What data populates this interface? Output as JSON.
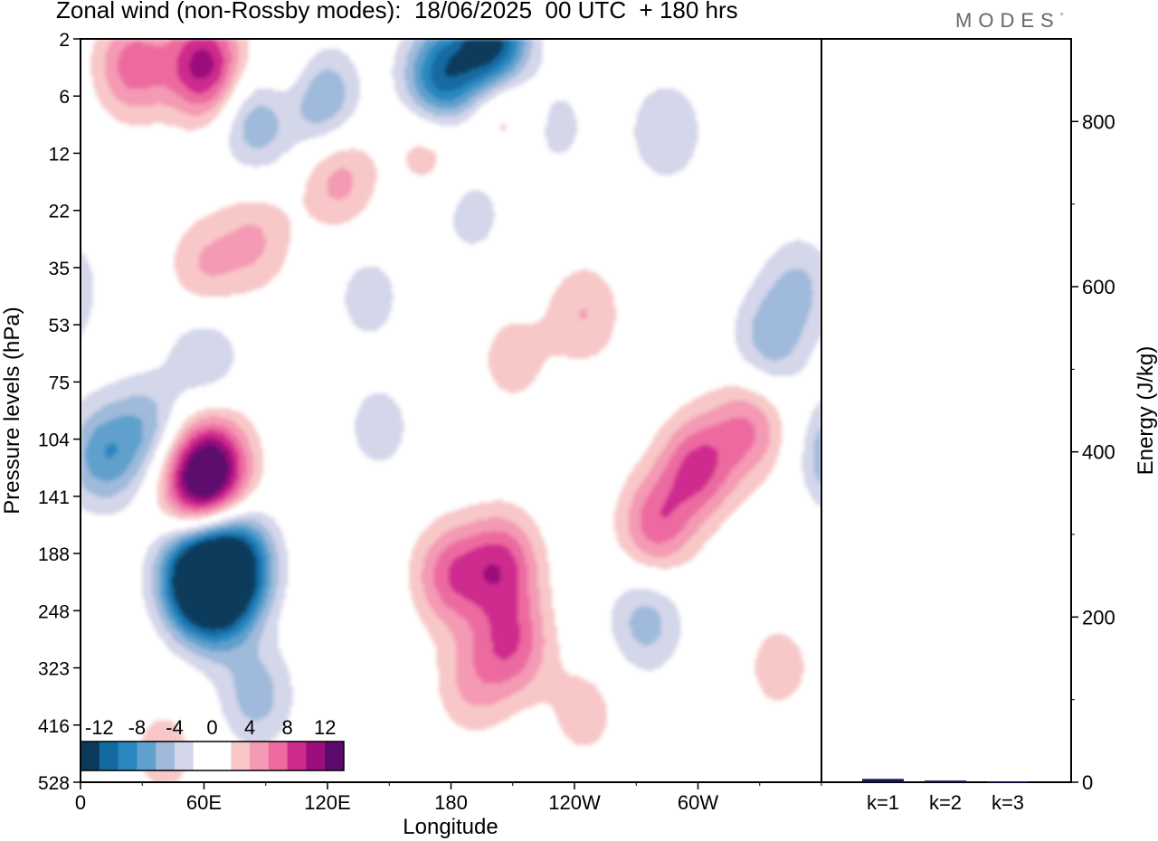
{
  "header": {
    "title": "Zonal wind (non-Rossby modes):  18/06/2025  00 UTC  + 180 hrs",
    "brand": "MODES",
    "brand_mark": "°"
  },
  "colors": {
    "palette": [
      "#0c3a5c",
      "#136aa0",
      "#2b87c0",
      "#5fa0cc",
      "#9fbadb",
      "#d4d6ea",
      "#ffffff",
      "#ffffff",
      "#f8c8c8",
      "#f49ab4",
      "#ec6aa0",
      "#cf2b8e",
      "#9c0e7c",
      "#5c0a6e"
    ],
    "energy_bar": "#14145c"
  },
  "chart_data": [
    {
      "type": "heatmap",
      "title": "Zonal wind (non-Rossby modes):  18/06/2025  00 UTC  + 180 hrs",
      "xlabel": "Longitude",
      "ylabel": "Pressure levels (hPa)",
      "x_ticks": [
        "0",
        "60E",
        "120E",
        "180",
        "120W",
        "60W"
      ],
      "x_tick_degrees": [
        0,
        60,
        120,
        180,
        240,
        300
      ],
      "xlim": [
        0,
        360
      ],
      "y_ticks": [
        "2",
        "6",
        "12",
        "22",
        "35",
        "53",
        "75",
        "104",
        "141",
        "188",
        "248",
        "323",
        "416",
        "528"
      ],
      "colorbar": {
        "labels": [
          "-12",
          "-8",
          "-4",
          "0",
          "4",
          "8",
          "12"
        ],
        "levels": [
          -14,
          -12,
          -10,
          -8,
          -6,
          -4,
          -2,
          0,
          2,
          4,
          6,
          8,
          10,
          12,
          14
        ],
        "position": "bottom-left"
      },
      "features": [
        {
          "lon": 55,
          "level_index": 9.4,
          "value": -13
        },
        {
          "lon": 75,
          "level_index": 9.2,
          "value": -13
        },
        {
          "lon": 65,
          "level_index": 9.8,
          "value": -9
        },
        {
          "lon": 85,
          "level_index": 11.5,
          "value": -5
        },
        {
          "lon": 65,
          "level_index": 7.5,
          "value": 10
        },
        {
          "lon": 55,
          "level_index": 7.8,
          "value": 9
        },
        {
          "lon": 10,
          "level_index": 7.3,
          "value": -7
        },
        {
          "lon": 32,
          "level_index": 6.8,
          "value": -5
        },
        {
          "lon": 60,
          "level_index": 5.5,
          "value": -4
        },
        {
          "lon": 180,
          "level_index": 9.4,
          "value": 7
        },
        {
          "lon": 205,
          "level_index": 9.2,
          "value": 8
        },
        {
          "lon": 210,
          "level_index": 10.6,
          "value": 7
        },
        {
          "lon": 190,
          "level_index": 11.3,
          "value": 4
        },
        {
          "lon": 280,
          "level_index": 8.5,
          "value": 7
        },
        {
          "lon": 300,
          "level_index": 7.5,
          "value": 8
        },
        {
          "lon": 325,
          "level_index": 6.8,
          "value": 6
        },
        {
          "lon": 335,
          "level_index": 5.3,
          "value": -5
        },
        {
          "lon": 350,
          "level_index": 4.3,
          "value": -4
        },
        {
          "lon": 200,
          "level_index": 0.1,
          "value": -14
        },
        {
          "lon": 175,
          "level_index": 0.7,
          "value": -11
        },
        {
          "lon": 115,
          "level_index": 1.0,
          "value": -9
        },
        {
          "lon": 85,
          "level_index": 1.4,
          "value": -6
        },
        {
          "lon": 60,
          "level_index": 0.45,
          "value": 11
        },
        {
          "lon": 25,
          "level_index": 0.45,
          "value": 7
        },
        {
          "lon": 105,
          "level_index": 0.8,
          "value": 5
        },
        {
          "lon": 205,
          "level_index": 1.1,
          "value": 5
        },
        {
          "lon": 170,
          "level_index": 1.8,
          "value": 4
        },
        {
          "lon": 125,
          "level_index": 2.4,
          "value": 5
        },
        {
          "lon": 85,
          "level_index": 3.5,
          "value": 4
        },
        {
          "lon": 60,
          "level_index": 4.0,
          "value": 4
        },
        {
          "lon": 245,
          "level_index": 4.8,
          "value": 4
        },
        {
          "lon": 210,
          "level_index": 5.6,
          "value": 3
        },
        {
          "lon": 285,
          "level_index": 1.6,
          "value": -4
        },
        {
          "lon": 230,
          "level_index": 1.5,
          "value": -3
        },
        {
          "lon": 190,
          "level_index": 3.0,
          "value": -3
        },
        {
          "lon": 140,
          "level_index": 4.5,
          "value": -3
        },
        {
          "lon": 145,
          "level_index": 6.8,
          "value": -3
        },
        {
          "lon": 275,
          "level_index": 10.2,
          "value": -5
        },
        {
          "lon": 245,
          "level_index": 11.8,
          "value": 3
        },
        {
          "lon": 340,
          "level_index": 11.0,
          "value": 3
        },
        {
          "lon": 40,
          "level_index": 12.5,
          "value": 3
        }
      ]
    },
    {
      "type": "bar",
      "ylabel": "Energy (J/kg)",
      "categories": [
        "k=1",
        "k=2",
        "k=3"
      ],
      "values": [
        4,
        2,
        1
      ],
      "ylim": [
        0,
        900
      ],
      "y_ticks": [
        0,
        200,
        400,
        600,
        800
      ]
    }
  ]
}
